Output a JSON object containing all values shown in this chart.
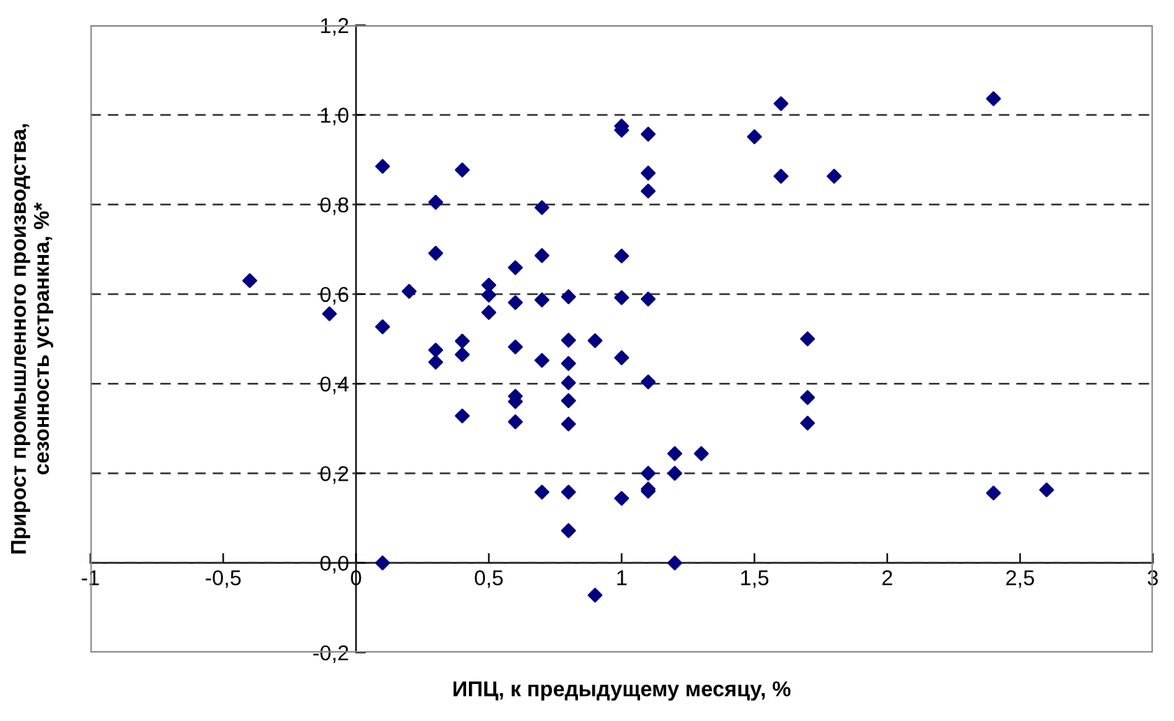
{
  "chart_data": {
    "type": "scatter",
    "xlabel": "ИПЦ, к предыдущему месяцу, %",
    "ylabel": "Прирост промышленного производства,\nсезонность устранкна, %*",
    "x": [
      -0.4,
      -0.1,
      0.1,
      0.4,
      0.3,
      0.7,
      0.3,
      0.7,
      1.0,
      0.6,
      0.2,
      0.5,
      0.5,
      0.6,
      0.7,
      0.8,
      1.0,
      0.5,
      0.1,
      1.0,
      1.0,
      1.1,
      1.5,
      1.6,
      2.4,
      1.1,
      1.1,
      1.6,
      1.8,
      1.1,
      1.7,
      0.3,
      0.3,
      0.4,
      0.4,
      0.6,
      0.7,
      0.8,
      0.8,
      0.9,
      1.0,
      0.8,
      0.6,
      0.6,
      0.8,
      0.4,
      0.6,
      0.8,
      0.7,
      0.8,
      1.0,
      0.8,
      0.1,
      0.9,
      1.1,
      1.7,
      1.7,
      1.2,
      1.3,
      1.1,
      1.2,
      1.1,
      1.1,
      1.2,
      2.4,
      2.6
    ],
    "series": [
      {
        "color": "#000080",
        "values": [
          0.63,
          0.556,
          0.885,
          0.877,
          0.805,
          0.793,
          0.691,
          0.686,
          0.685,
          0.659,
          0.606,
          0.62,
          0.598,
          0.581,
          0.587,
          0.594,
          0.592,
          0.559,
          0.527,
          0.975,
          0.966,
          0.957,
          0.951,
          1.025,
          1.036,
          0.87,
          0.83,
          0.863,
          0.863,
          0.589,
          0.5,
          0.475,
          0.448,
          0.495,
          0.465,
          0.482,
          0.452,
          0.497,
          0.445,
          0.496,
          0.458,
          0.402,
          0.372,
          0.36,
          0.362,
          0.328,
          0.315,
          0.31,
          0.158,
          0.158,
          0.144,
          0.072,
          0.0,
          -0.072,
          0.404,
          0.369,
          0.312,
          0.244,
          0.244,
          0.2,
          0.2,
          0.165,
          0.16,
          0.0,
          0.156,
          0.163
        ]
      }
    ],
    "xlim": [
      -1,
      3
    ],
    "ylim": [
      -0.2,
      1.2
    ],
    "xticks": [
      {
        "value": -1,
        "label": "-1"
      },
      {
        "value": -0.5,
        "label": "-0,5"
      },
      0,
      {
        "value": 0.5,
        "label": "0,5"
      },
      1,
      {
        "value": 1.5,
        "label": "1,5"
      },
      2,
      {
        "value": 2.5,
        "label": "2,5"
      },
      3
    ],
    "yticks": [
      {
        "value": -0.2,
        "label": "-0,2"
      },
      {
        "value": 0,
        "label": "0,0"
      },
      {
        "value": 0.2,
        "label": "0,2"
      },
      {
        "value": 0.4,
        "label": "0,4"
      },
      {
        "value": 0.6,
        "label": "0,6"
      },
      {
        "value": 0.8,
        "label": "0,8"
      },
      {
        "value": 1.0,
        "label": "1,0"
      },
      {
        "value": 1.2,
        "label": "1,2"
      }
    ],
    "grid": "y",
    "marker": "diamond"
  }
}
